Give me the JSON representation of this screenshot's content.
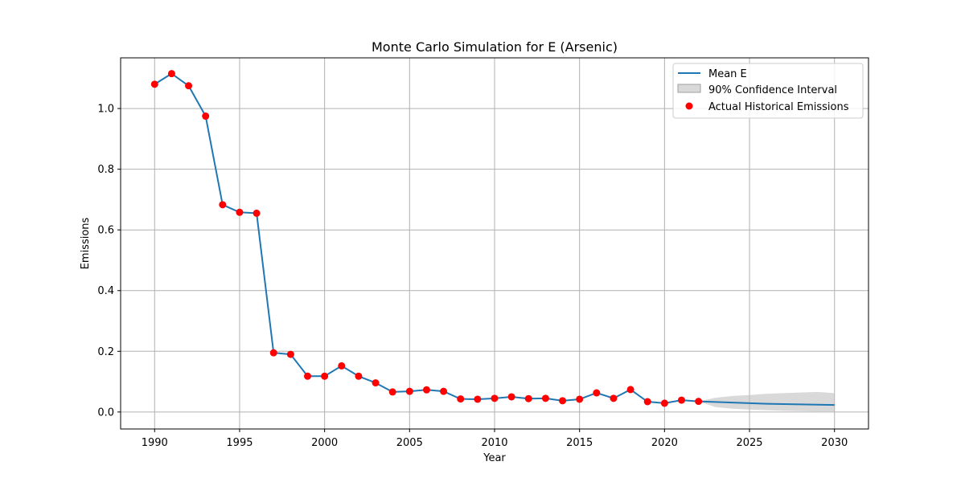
{
  "chart_data": {
    "type": "line",
    "title": "Monte Carlo Simulation for E (Arsenic)",
    "xlabel": "Year",
    "ylabel": "Emissions",
    "xlim": [
      1988,
      2032
    ],
    "ylim": [
      -0.056,
      1.167
    ],
    "xticks": [
      1990,
      1995,
      2000,
      2005,
      2010,
      2015,
      2020,
      2025,
      2030
    ],
    "yticks": [
      0.0,
      0.2,
      0.4,
      0.6,
      0.8,
      1.0
    ],
    "ytick_labels": [
      "0.0",
      "0.2",
      "0.4",
      "0.6",
      "0.8",
      "1.0"
    ],
    "grid": true,
    "legend_position": "top-right",
    "legend": {
      "mean_label": "Mean E",
      "ci_label": "90% Confidence Interval",
      "actual_label": "Actual Historical Emissions"
    },
    "colors": {
      "mean": "#1f77b4",
      "actual": "#ff0000",
      "ci_fill": "#bfbfbf",
      "grid": "#b0b0b0"
    },
    "mean": {
      "x": [
        1990,
        1991,
        1992,
        1993,
        1994,
        1995,
        1996,
        1997,
        1998,
        1999,
        2000,
        2001,
        2002,
        2003,
        2004,
        2005,
        2006,
        2007,
        2008,
        2009,
        2010,
        2011,
        2012,
        2013,
        2014,
        2015,
        2016,
        2017,
        2018,
        2019,
        2020,
        2021,
        2022,
        2023,
        2024,
        2025,
        2026,
        2027,
        2028,
        2029,
        2030
      ],
      "y": [
        1.08,
        1.115,
        1.075,
        0.975,
        0.683,
        0.658,
        0.655,
        0.195,
        0.19,
        0.118,
        0.118,
        0.152,
        0.118,
        0.096,
        0.066,
        0.068,
        0.073,
        0.068,
        0.043,
        0.042,
        0.045,
        0.05,
        0.044,
        0.045,
        0.037,
        0.042,
        0.063,
        0.045,
        0.074,
        0.034,
        0.029,
        0.039,
        0.035,
        0.033,
        0.031,
        0.029,
        0.027,
        0.026,
        0.025,
        0.024,
        0.023
      ]
    },
    "actual": {
      "x": [
        1990,
        1991,
        1992,
        1993,
        1994,
        1995,
        1996,
        1997,
        1998,
        1999,
        2000,
        2001,
        2002,
        2003,
        2004,
        2005,
        2006,
        2007,
        2008,
        2009,
        2010,
        2011,
        2012,
        2013,
        2014,
        2015,
        2016,
        2017,
        2018,
        2019,
        2020,
        2021,
        2022
      ],
      "y": [
        1.08,
        1.115,
        1.075,
        0.975,
        0.683,
        0.658,
        0.655,
        0.195,
        0.19,
        0.118,
        0.118,
        0.152,
        0.118,
        0.096,
        0.066,
        0.068,
        0.073,
        0.068,
        0.043,
        0.042,
        0.045,
        0.05,
        0.044,
        0.045,
        0.037,
        0.042,
        0.063,
        0.045,
        0.074,
        0.034,
        0.029,
        0.039,
        0.035
      ]
    },
    "confidence_interval": {
      "x": [
        2022,
        2023,
        2024,
        2025,
        2026,
        2027,
        2028,
        2029,
        2030
      ],
      "lower": [
        0.035,
        0.016,
        0.011,
        0.008,
        0.006,
        0.004,
        0.003,
        0.002,
        0.002
      ],
      "upper": [
        0.035,
        0.047,
        0.053,
        0.056,
        0.06,
        0.062,
        0.064,
        0.066,
        0.062
      ]
    }
  }
}
